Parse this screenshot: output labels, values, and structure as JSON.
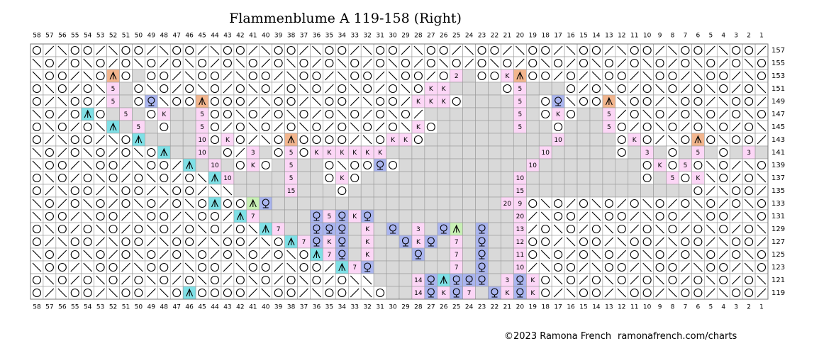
{
  "title": "Flammenblume A 119-158 (Right)",
  "column_numbers": [
    58,
    57,
    56,
    55,
    54,
    53,
    52,
    51,
    50,
    49,
    48,
    47,
    46,
    45,
    44,
    43,
    42,
    41,
    40,
    39,
    38,
    37,
    36,
    35,
    34,
    33,
    32,
    31,
    30,
    29,
    28,
    27,
    26,
    25,
    24,
    23,
    22,
    21,
    20,
    19,
    18,
    17,
    16,
    15,
    14,
    13,
    12,
    11,
    10,
    9,
    8,
    7,
    6,
    5,
    4,
    3,
    2,
    1
  ],
  "rows": [
    {
      "label": 157,
      "cells": [
        "o",
        "/",
        "\\",
        "o",
        "o",
        "/",
        "\\",
        "o",
        "o",
        "/",
        "\\",
        "o",
        "o",
        "/",
        "\\",
        "o",
        "o",
        "/",
        "\\",
        "o",
        "o",
        "/",
        "\\",
        "o",
        "o",
        "/",
        "\\",
        "o",
        "o",
        "/",
        "\\",
        "o",
        "o",
        "/",
        "\\",
        "o",
        "o",
        "/",
        "\\",
        "o",
        "o",
        "/",
        "\\",
        "o",
        "o",
        "/",
        "\\",
        "o",
        "o",
        "/",
        "\\",
        "o",
        "o",
        "/",
        "\\",
        "o",
        "o",
        "/"
      ]
    },
    {
      "label": 155,
      "cells": [
        "\\",
        "o",
        "/",
        "o",
        "\\",
        "o",
        "/",
        "o",
        "\\",
        "o",
        "/",
        "o",
        "\\",
        "o",
        "/",
        "o",
        "\\",
        "o",
        "/",
        "o",
        "\\",
        "o",
        "/",
        "o",
        "\\",
        "o",
        "/",
        "o",
        "\\",
        "o",
        "/",
        "o",
        "\\",
        "o",
        "/",
        "o",
        "\\",
        "o",
        "/",
        "o",
        "\\",
        "o",
        "/",
        "o",
        "\\",
        "o",
        "/",
        "o",
        "\\",
        "o",
        "/",
        "o",
        "\\",
        "o",
        "/",
        "o",
        "\\",
        "o"
      ]
    },
    {
      "label": 153,
      "cells": [
        "\\",
        "o",
        "o",
        "/",
        "\\",
        "o",
        "A",
        "o",
        "g",
        "o",
        "o",
        "/",
        "\\",
        "o",
        "o",
        "/",
        "\\",
        "o",
        "o",
        "/",
        "\\",
        "o",
        "o",
        "/",
        "\\",
        "o",
        "o",
        "/",
        "\\",
        "o",
        "o",
        "/",
        "o",
        "2",
        "g",
        "o",
        "o",
        "K",
        "A",
        "o",
        "o",
        "/",
        "o",
        "/",
        "\\",
        "o",
        "o",
        "/",
        "\\",
        "o",
        "o",
        "/",
        "\\",
        "o",
        "o",
        "/",
        "\\",
        "o"
      ]
    },
    {
      "label": 151,
      "cells": [
        "o",
        "\\",
        "o",
        "/",
        "o",
        "\\",
        "5",
        "g",
        "o",
        "\\",
        "o",
        "/",
        "o",
        "\\",
        "o",
        "/",
        "o",
        "\\",
        "o",
        "/",
        "o",
        "\\",
        "o",
        "/",
        "o",
        "\\",
        "o",
        "/",
        "o",
        "\\",
        "o",
        "K",
        "K",
        "g",
        "g",
        "g",
        "g",
        "o",
        "5",
        "g",
        "g",
        "g",
        "o",
        "/",
        "o",
        "\\",
        "o",
        "/",
        "o",
        "\\",
        "o",
        "/",
        "o",
        "\\",
        "o",
        "/",
        "o",
        "\\"
      ]
    },
    {
      "label": 149,
      "cells": [
        "o",
        "/",
        "\\",
        "o",
        "o",
        "/",
        "5",
        "g",
        "o",
        "Q",
        "\\",
        "o",
        "o",
        "A",
        "o",
        "o",
        "o",
        "/",
        "\\",
        "o",
        "o",
        "/",
        "\\",
        "o",
        "o",
        "/",
        "\\",
        "o",
        "o",
        "/",
        "K",
        "K",
        "K",
        "o",
        "g",
        "g",
        "g",
        "g",
        "5",
        "g",
        "o",
        "Q",
        "\\",
        "o",
        "o",
        "A",
        "\\",
        "o",
        "o",
        "/",
        "\\",
        "o",
        "o",
        "/",
        "\\",
        "o",
        "o",
        "/"
      ]
    },
    {
      "label": 147,
      "cells": [
        "\\",
        "o",
        "/",
        "o",
        "^",
        "o",
        "g",
        "5",
        "g",
        "o",
        "K",
        "g",
        "g",
        "5",
        "o",
        "o",
        "\\",
        "o",
        "/",
        "o",
        "\\",
        "o",
        "/",
        "o",
        "\\",
        "o",
        "/",
        "o",
        "\\",
        "o",
        "/",
        "g",
        "g",
        "g",
        "g",
        "g",
        "g",
        "g",
        "5",
        "g",
        "o",
        "K",
        "o",
        "g",
        "g",
        "5",
        "/",
        "o",
        "\\",
        "o",
        "/",
        "o",
        "\\",
        "o",
        "/",
        "o",
        "\\",
        "o"
      ]
    },
    {
      "label": 145,
      "cells": [
        "o",
        "\\",
        "o",
        "/",
        "o",
        "\\",
        "^",
        "g",
        "5",
        "g",
        "o",
        "g",
        "g",
        "5",
        "o",
        "/",
        "o",
        "\\",
        "o",
        "/",
        "o",
        "\\",
        "o",
        "/",
        "o",
        "\\",
        "o",
        "/",
        "o",
        "\\",
        "K",
        "o",
        "g",
        "g",
        "g",
        "g",
        "g",
        "g",
        "5",
        "g",
        "g",
        "o",
        "g",
        "g",
        "g",
        "5",
        "o",
        "/",
        "o",
        "\\",
        "o",
        "/",
        "o",
        "\\",
        "o",
        "/",
        "o",
        "\\"
      ]
    },
    {
      "label": 143,
      "cells": [
        "o",
        "/",
        "\\",
        "o",
        "o",
        "/",
        "\\",
        "o",
        "^",
        "g",
        "g",
        "g",
        "g",
        "10",
        "o",
        "K",
        "o",
        "/",
        "\\",
        "o",
        "A",
        "o",
        "o",
        "o",
        "o",
        "/",
        "\\",
        "o",
        "K",
        "K",
        "o",
        "g",
        "g",
        "g",
        "g",
        "g",
        "g",
        "g",
        "g",
        "g",
        "g",
        "10",
        "g",
        "g",
        "g",
        "g",
        "o",
        "K",
        "o",
        "/",
        "\\",
        "o",
        "A",
        "o",
        "\\",
        "o",
        "o",
        "/"
      ]
    },
    {
      "label": 141,
      "cells": [
        "\\",
        "o",
        "/",
        "o",
        "\\",
        "o",
        "/",
        "o",
        "\\",
        "o",
        "^",
        "g",
        "g",
        "10",
        "g",
        "o",
        "/",
        "3",
        "g",
        "o",
        "5",
        "o",
        "K",
        "K",
        "K",
        "K",
        "K",
        "K",
        "g",
        "g",
        "g",
        "g",
        "g",
        "g",
        "g",
        "g",
        "g",
        "g",
        "g",
        "g",
        "10",
        "g",
        "g",
        "g",
        "g",
        "g",
        "o",
        "g",
        "3",
        "g",
        "o",
        "g",
        "5",
        "g",
        "o",
        "g",
        "3",
        "g"
      ]
    },
    {
      "label": 139,
      "cells": [
        "\\",
        "o",
        "o",
        "/",
        "\\",
        "o",
        "o",
        "/",
        "\\",
        "o",
        "o",
        "/",
        "^",
        "g",
        "10",
        "g",
        "o",
        "K",
        "o",
        "g",
        "5",
        "g",
        "g",
        "o",
        "\\",
        "o",
        "o",
        "Q",
        "o",
        "g",
        "g",
        "g",
        "g",
        "g",
        "g",
        "g",
        "g",
        "g",
        "g",
        "10",
        "g",
        "g",
        "g",
        "g",
        "g",
        "g",
        "g",
        "g",
        "o",
        "K",
        "o",
        "5",
        "o",
        "\\",
        "o",
        "/",
        "\\",
        "o"
      ]
    },
    {
      "label": 137,
      "cells": [
        "o",
        "\\",
        "o",
        "/",
        "o",
        "\\",
        "o",
        "/",
        "o",
        "\\",
        "o",
        "/",
        "o",
        "\\",
        "^",
        "10",
        "g",
        "g",
        "g",
        "g",
        "5",
        "g",
        "g",
        "o",
        "K",
        "o",
        "g",
        "g",
        "g",
        "g",
        "g",
        "g",
        "g",
        "g",
        "g",
        "g",
        "g",
        "g",
        "10",
        "g",
        "g",
        "g",
        "g",
        "g",
        "g",
        "g",
        "g",
        "g",
        "o",
        "g",
        "5",
        "o",
        "K",
        "\\",
        "o",
        "/",
        "o",
        "\\"
      ]
    },
    {
      "label": 135,
      "cells": [
        "o",
        "/",
        "\\",
        "o",
        "o",
        "/",
        "\\",
        "o",
        "o",
        "/",
        "\\",
        "o",
        "o",
        "/",
        "\\",
        "\\",
        "g",
        "g",
        "g",
        "g",
        "15",
        "g",
        "g",
        "g",
        "o",
        "g",
        "g",
        "g",
        "g",
        "g",
        "g",
        "g",
        "g",
        "g",
        "g",
        "g",
        "g",
        "g",
        "15",
        "g",
        "g",
        "g",
        "g",
        "g",
        "g",
        "g",
        "g",
        "g",
        "g",
        "g",
        "g",
        "g",
        "o",
        "/",
        "\\",
        "o",
        "o",
        "/"
      ]
    },
    {
      "label": 133,
      "cells": [
        "\\",
        "o",
        "/",
        "o",
        "\\",
        "o",
        "/",
        "o",
        "\\",
        "o",
        "/",
        "o",
        "\\",
        "o",
        "^",
        "o",
        "o",
        "a",
        "Q",
        "g",
        "g",
        "g",
        "g",
        "g",
        "g",
        "g",
        "g",
        "g",
        "g",
        "g",
        "g",
        "g",
        "g",
        "g",
        "g",
        "g",
        "g",
        "20",
        "9",
        "o",
        "\\",
        "o",
        "/",
        "o",
        "\\",
        "o",
        "/",
        "o",
        "\\",
        "o",
        "/",
        "o",
        "\\",
        "o",
        "/",
        "o",
        "\\",
        "o"
      ]
    },
    {
      "label": 131,
      "cells": [
        "\\",
        "o",
        "o",
        "/",
        "\\",
        "o",
        "o",
        "/",
        "\\",
        "o",
        "o",
        "/",
        "\\",
        "o",
        "o",
        "/",
        "^",
        "7",
        "g",
        "g",
        "g",
        "g",
        "Q",
        "5",
        "Q",
        "K",
        "Q",
        "g",
        "g",
        "g",
        "g",
        "g",
        "g",
        "g",
        "g",
        "g",
        "g",
        "g",
        "20",
        "/",
        "\\",
        "o",
        "o",
        "/",
        "\\",
        "o",
        "o",
        "/",
        "\\",
        "o",
        "o",
        "/",
        "\\",
        "o",
        "o",
        "/",
        "\\",
        "o"
      ]
    },
    {
      "label": 129,
      "cells": [
        "o",
        "\\",
        "o",
        "/",
        "o",
        "\\",
        "o",
        "/",
        "o",
        "\\",
        "o",
        "/",
        "o",
        "\\",
        "o",
        "/",
        "o",
        "\\",
        "^",
        "7",
        "g",
        "g",
        "Q",
        "Q",
        "Q",
        "g",
        "K",
        "g",
        "Q",
        "g",
        "3",
        "g",
        "Q",
        "a",
        "g",
        "Q",
        "g",
        "g",
        "13",
        "/",
        "o",
        "\\",
        "o",
        "/",
        "o",
        "\\",
        "o",
        "/",
        "o",
        "\\",
        "o",
        "/",
        "o",
        "\\",
        "o",
        "/",
        "o",
        "\\"
      ]
    },
    {
      "label": 127,
      "cells": [
        "o",
        "/",
        "\\",
        "o",
        "o",
        "/",
        "\\",
        "o",
        "o",
        "/",
        "\\",
        "o",
        "o",
        "/",
        "\\",
        "o",
        "o",
        "/",
        "\\",
        "o",
        "^",
        "7",
        "Q",
        "K",
        "Q",
        "g",
        "K",
        "g",
        "g",
        "Q",
        "K",
        "Q",
        "g",
        "7",
        "g",
        "Q",
        "g",
        "g",
        "12",
        "o",
        "o",
        "/",
        "\\",
        "o",
        "o",
        "/",
        "\\",
        "o",
        "o",
        "/",
        "\\",
        "o",
        "o",
        "/",
        "\\",
        "o",
        "o",
        "/"
      ]
    },
    {
      "label": 125,
      "cells": [
        "\\",
        "o",
        "/",
        "o",
        "\\",
        "o",
        "/",
        "o",
        "\\",
        "o",
        "/",
        "o",
        "\\",
        "o",
        "/",
        "o",
        "\\",
        "o",
        "/",
        "o",
        "\\",
        "o",
        "^",
        "7",
        "Q",
        "g",
        "K",
        "g",
        "g",
        "g",
        "Q",
        "g",
        "g",
        "7",
        "g",
        "Q",
        "g",
        "g",
        "11",
        "o",
        "\\",
        "o",
        "/",
        "o",
        "\\",
        "o",
        "/",
        "o",
        "\\",
        "o",
        "/",
        "o",
        "\\",
        "o",
        "/",
        "o",
        "\\",
        "o"
      ]
    },
    {
      "label": 123,
      "cells": [
        "\\",
        "o",
        "o",
        "/",
        "\\",
        "o",
        "o",
        "/",
        "\\",
        "o",
        "o",
        "/",
        "\\",
        "o",
        "o",
        "/",
        "\\",
        "o",
        "o",
        "/",
        "\\",
        "o",
        "o",
        "/",
        "^",
        "7",
        "Q",
        "g",
        "g",
        "g",
        "g",
        "g",
        "g",
        "7",
        "g",
        "Q",
        "g",
        "g",
        "10",
        "/",
        "\\",
        "o",
        "o",
        "/",
        "\\",
        "o",
        "o",
        "/",
        "\\",
        "o",
        "o",
        "/",
        "\\",
        "o",
        "o",
        "/",
        "\\",
        "o"
      ]
    },
    {
      "label": 121,
      "cells": [
        "o",
        "\\",
        "o",
        "/",
        "o",
        "\\",
        "o",
        "/",
        "o",
        "\\",
        "o",
        "/",
        "o",
        "\\",
        "o",
        "/",
        "o",
        "\\",
        "o",
        "/",
        "o",
        "\\",
        "o",
        "/",
        "o",
        "\\",
        "\\",
        "g",
        "g",
        "g",
        "14",
        "Q",
        "^",
        "Q",
        "Q",
        "Q",
        "g",
        "3",
        "Q",
        "K",
        "o",
        "\\",
        "o",
        "/",
        "o",
        "\\",
        "o",
        "/",
        "o",
        "\\",
        "o",
        "/",
        "o",
        "\\",
        "o",
        "/",
        "o",
        "\\"
      ]
    },
    {
      "label": 119,
      "cells": [
        "o",
        "/",
        "\\",
        "o",
        "o",
        "/",
        "\\",
        "o",
        "o",
        "/",
        "\\",
        "o",
        "^",
        "o",
        "o",
        "o",
        "o",
        "/",
        "\\",
        "o",
        "o",
        "/",
        "\\",
        "o",
        "o",
        "/",
        "\\",
        "o",
        "g",
        "g",
        "14",
        "Q",
        "K",
        "Q",
        "7",
        "g",
        "Q",
        "K",
        "Q",
        "K",
        "o",
        "/",
        "\\",
        "o",
        "o",
        "/",
        "\\",
        "o",
        "o",
        "/",
        "\\",
        "o",
        "o",
        "/",
        "\\",
        "o",
        "o",
        "/"
      ]
    }
  ],
  "footer": {
    "copyright": "©2023 Ramona French",
    "url": "ramonafrench.com/charts"
  }
}
